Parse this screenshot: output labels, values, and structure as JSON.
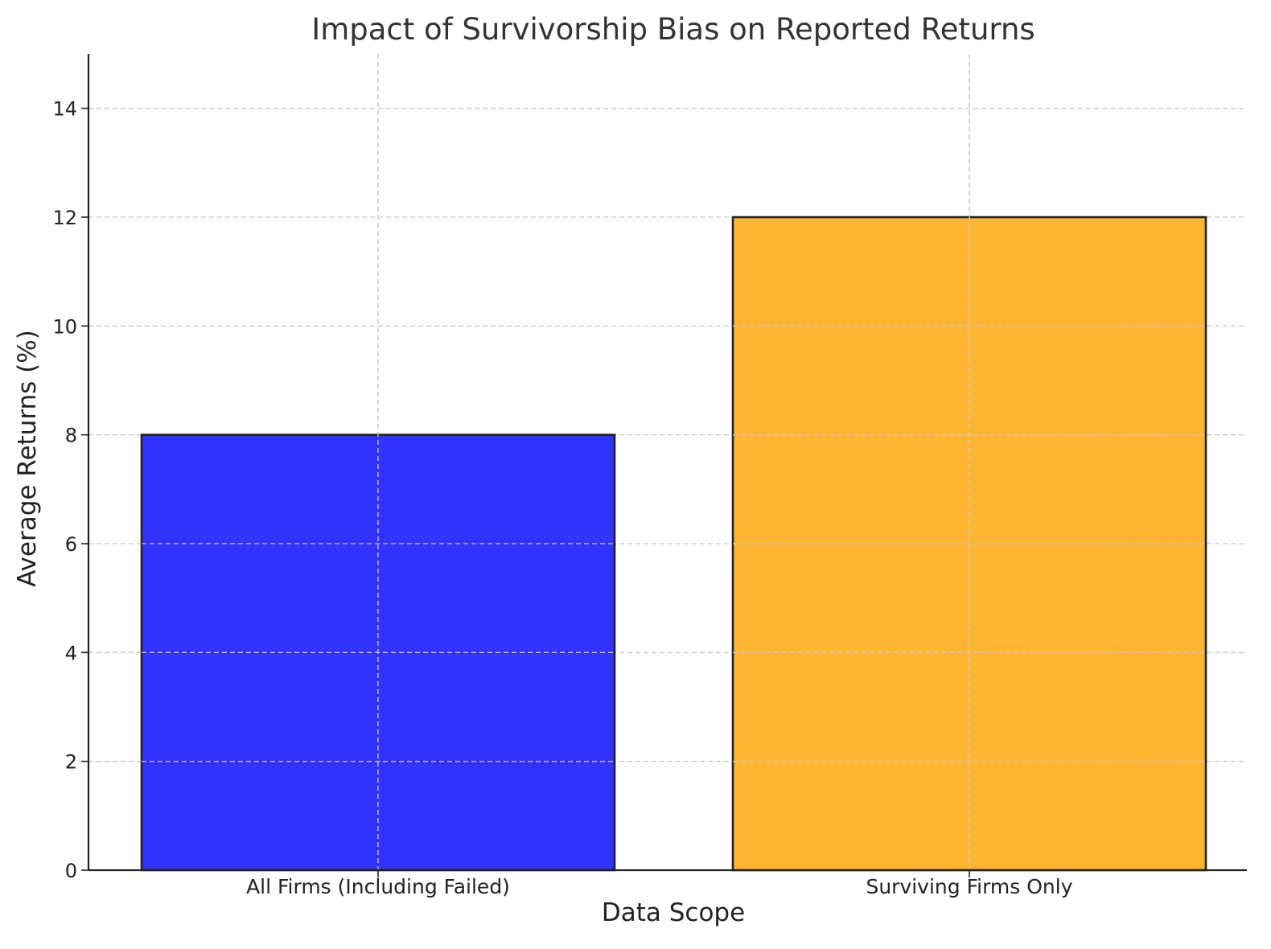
{
  "chart_data": {
    "type": "bar",
    "title": "Impact of Survivorship Bias on Reported Returns",
    "xlabel": "Data Scope",
    "ylabel": "Average Returns (%)",
    "categories": [
      "All Firms (Including Failed)",
      "Surviving Firms Only"
    ],
    "values": [
      8,
      12
    ],
    "colors": [
      "#3333ff",
      "#ffb533"
    ],
    "ylim": [
      0,
      15
    ],
    "yticks": [
      0,
      2,
      4,
      6,
      8,
      10,
      12,
      14
    ],
    "grid": true
  }
}
